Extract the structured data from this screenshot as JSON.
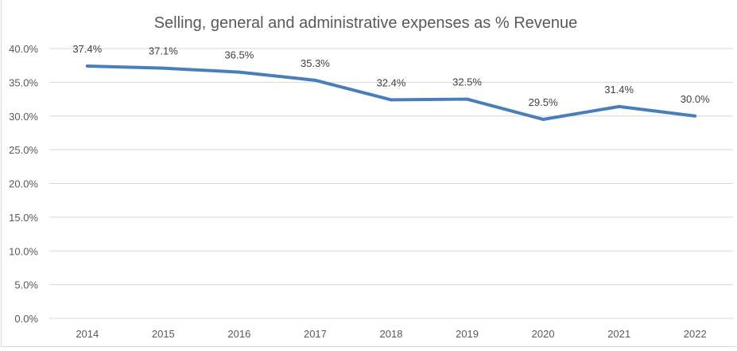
{
  "chart_data": {
    "type": "line",
    "title": "Selling, general and administrative expenses as % Revenue",
    "categories": [
      "2014",
      "2015",
      "2016",
      "2017",
      "2018",
      "2019",
      "2020",
      "2021",
      "2022"
    ],
    "series": [
      {
        "values": [
          37.4,
          37.1,
          36.5,
          35.3,
          32.4,
          32.5,
          29.5,
          31.4,
          30.0
        ],
        "data_labels": [
          "37.4%",
          "37.1%",
          "36.5%",
          "35.3%",
          "32.4%",
          "32.5%",
          "29.5%",
          "31.4%",
          "30.0%"
        ]
      }
    ],
    "ylim": [
      0,
      40
    ],
    "yticks": [
      "0.0%",
      "5.0%",
      "10.0%",
      "15.0%",
      "20.0%",
      "25.0%",
      "30.0%",
      "35.0%",
      "40.0%"
    ],
    "grid": true,
    "legend": "none",
    "colors": {
      "line": "#4a7ebb",
      "grid": "#d9d9d9",
      "text": "#595959"
    }
  }
}
